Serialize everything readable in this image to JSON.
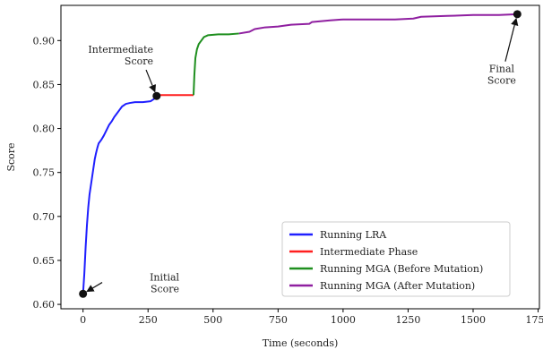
{
  "chart_data": {
    "type": "line",
    "title": "",
    "xlabel": "Time (seconds)",
    "ylabel": "Score",
    "xlim": [
      -85,
      1755
    ],
    "ylim": [
      0.595,
      0.94
    ],
    "xticks": [
      0,
      250,
      500,
      750,
      1000,
      1250,
      1500,
      1750
    ],
    "yticks": [
      0.6,
      0.65,
      0.7,
      0.75,
      0.8,
      0.85,
      0.9
    ],
    "xtick_labels": [
      "0",
      "250",
      "500",
      "750",
      "1000",
      "1250",
      "1500",
      "1750"
    ],
    "ytick_labels": [
      "0.60",
      "0.65",
      "0.70",
      "0.75",
      "0.80",
      "0.85",
      "0.90"
    ],
    "grid": false,
    "legend_position": "lower-right",
    "series": [
      {
        "name": "Running LRA",
        "color": "#1f1fff",
        "points": [
          [
            0,
            0.612
          ],
          [
            5,
            0.635
          ],
          [
            10,
            0.665
          ],
          [
            15,
            0.69
          ],
          [
            20,
            0.71
          ],
          [
            25,
            0.725
          ],
          [
            30,
            0.735
          ],
          [
            35,
            0.745
          ],
          [
            40,
            0.755
          ],
          [
            45,
            0.765
          ],
          [
            50,
            0.772
          ],
          [
            55,
            0.778
          ],
          [
            60,
            0.783
          ],
          [
            70,
            0.787
          ],
          [
            80,
            0.792
          ],
          [
            90,
            0.798
          ],
          [
            100,
            0.804
          ],
          [
            110,
            0.808
          ],
          [
            120,
            0.813
          ],
          [
            130,
            0.817
          ],
          [
            140,
            0.821
          ],
          [
            150,
            0.825
          ],
          [
            165,
            0.828
          ],
          [
            180,
            0.829
          ],
          [
            200,
            0.83
          ],
          [
            230,
            0.83
          ],
          [
            260,
            0.831
          ],
          [
            275,
            0.834
          ],
          [
            283,
            0.836
          ]
        ]
      },
      {
        "name": "Intermediate Phase",
        "color": "#ff1f1f",
        "points": [
          [
            283,
            0.837
          ],
          [
            300,
            0.838
          ],
          [
            350,
            0.838
          ],
          [
            400,
            0.838
          ],
          [
            425,
            0.838
          ]
        ]
      },
      {
        "name": "Running MGA (Before Mutation)",
        "color": "#1f8f1f",
        "points": [
          [
            425,
            0.838
          ],
          [
            428,
            0.86
          ],
          [
            432,
            0.88
          ],
          [
            438,
            0.89
          ],
          [
            445,
            0.896
          ],
          [
            455,
            0.9
          ],
          [
            465,
            0.904
          ],
          [
            480,
            0.906
          ],
          [
            520,
            0.907
          ],
          [
            560,
            0.907
          ],
          [
            600,
            0.908
          ]
        ]
      },
      {
        "name": "Running MGA (After Mutation)",
        "color": "#8f1fa0",
        "points": [
          [
            600,
            0.908
          ],
          [
            640,
            0.91
          ],
          [
            660,
            0.913
          ],
          [
            700,
            0.915
          ],
          [
            750,
            0.916
          ],
          [
            800,
            0.918
          ],
          [
            870,
            0.919
          ],
          [
            880,
            0.921
          ],
          [
            950,
            0.923
          ],
          [
            1000,
            0.924
          ],
          [
            1100,
            0.924
          ],
          [
            1200,
            0.924
          ],
          [
            1270,
            0.925
          ],
          [
            1300,
            0.927
          ],
          [
            1400,
            0.928
          ],
          [
            1500,
            0.929
          ],
          [
            1600,
            0.929
          ],
          [
            1670,
            0.93
          ]
        ]
      }
    ],
    "markers": [
      {
        "name": "initial",
        "x": 0,
        "y": 0.612
      },
      {
        "name": "intermediate",
        "x": 283,
        "y": 0.837
      },
      {
        "name": "final",
        "x": 1670,
        "y": 0.93
      }
    ],
    "annotations": [
      {
        "name": "initial-score",
        "lines": [
          "Initial",
          "Score"
        ],
        "text_x": 370,
        "text_y": 0.627,
        "target_x": 0,
        "target_y": 0.612,
        "anchor": "end"
      },
      {
        "name": "intermediate-score",
        "lines": [
          "Intermediate",
          "Score"
        ],
        "text_x": 270,
        "text_y": 0.886,
        "target_x": 283,
        "target_y": 0.837,
        "anchor": "end"
      },
      {
        "name": "final-score",
        "lines": [
          "Final",
          "Score"
        ],
        "text_x": 1610,
        "text_y": 0.864,
        "target_x": 1670,
        "target_y": 0.93,
        "anchor": "middle"
      }
    ]
  }
}
